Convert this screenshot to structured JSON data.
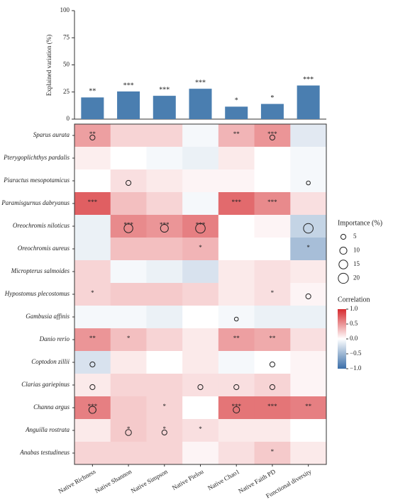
{
  "chart_data": [
    {
      "type": "bar",
      "ylabel": "Explained variation (%)",
      "color": "#4a7eb0",
      "values": [
        20,
        25.5,
        21.5,
        28,
        11.5,
        14,
        31
      ],
      "significance": [
        "**",
        "***",
        "***",
        "***",
        "*",
        "*",
        "***"
      ],
      "ylim": [
        0,
        100
      ],
      "yticks": [
        0,
        25,
        50,
        75,
        100
      ]
    },
    {
      "type": "heatmap",
      "columns": [
        "Native Richness",
        "Native Shannon",
        "Native Simpson",
        "Native Pielou",
        "Native Chao1",
        "Native Faith PD",
        "Functional diversity"
      ],
      "rows": [
        "Sparus aurata",
        "Pterygoplichthys pardalis",
        "Piaractus mesopotamicus",
        "Paramisgurnus dabryanus",
        "Oreochromis niloticus",
        "Oreochromis aureus",
        "Micropterus salmoides",
        "Hypostomus plecostomus",
        "Gambusia affinis",
        "Danio rerio",
        "Coptodon zillii",
        "Clarias gariepinus",
        "Channa argus",
        "Anguilla rostrata",
        "Anabas testudineus"
      ],
      "values": [
        [
          0.45,
          0.2,
          0.2,
          -0.05,
          0.35,
          0.5,
          -0.15
        ],
        [
          0.08,
          0,
          -0.05,
          -0.1,
          0.1,
          0,
          -0.05
        ],
        [
          0,
          0.15,
          0.1,
          0.05,
          0.05,
          0,
          -0.05
        ],
        [
          0.75,
          0.3,
          0.2,
          -0.05,
          0.7,
          0.55,
          0.15
        ],
        [
          -0.1,
          0.55,
          0.5,
          0.6,
          0,
          0.05,
          -0.3
        ],
        [
          -0.1,
          0.3,
          0.3,
          0.35,
          0,
          0,
          -0.45
        ],
        [
          0.2,
          -0.05,
          -0.1,
          -0.2,
          0.1,
          0.15,
          0.1
        ],
        [
          0.2,
          0.25,
          0.25,
          0.2,
          0.1,
          0.15,
          0.05
        ],
        [
          -0.05,
          -0.05,
          -0.1,
          0,
          -0.05,
          -0.1,
          -0.1
        ],
        [
          0.5,
          0.3,
          0.2,
          0.1,
          0.45,
          0.4,
          0.15
        ],
        [
          -0.2,
          0.1,
          0,
          0.1,
          -0.05,
          0,
          0.05
        ],
        [
          0.1,
          0.2,
          0.2,
          0.15,
          0.15,
          0.2,
          0.05
        ],
        [
          0.6,
          0.25,
          0.2,
          0,
          0.65,
          0.65,
          0.6
        ],
        [
          0.1,
          0.25,
          0.2,
          0.15,
          0.1,
          0.1,
          0
        ],
        [
          0.2,
          0.2,
          0.2,
          0.05,
          0.15,
          0.25,
          0.1
        ]
      ],
      "importance": [
        [
          5,
          null,
          null,
          null,
          null,
          5,
          null
        ],
        [
          null,
          null,
          null,
          null,
          null,
          null,
          null
        ],
        [
          null,
          5,
          null,
          null,
          null,
          null,
          3
        ],
        [
          null,
          null,
          null,
          null,
          null,
          null,
          null
        ],
        [
          null,
          15,
          12,
          18,
          null,
          null,
          18
        ],
        [
          null,
          null,
          null,
          null,
          null,
          null,
          null
        ],
        [
          null,
          null,
          null,
          null,
          null,
          null,
          null
        ],
        [
          null,
          null,
          null,
          null,
          null,
          null,
          5
        ],
        [
          null,
          null,
          null,
          null,
          3,
          null,
          null
        ],
        [
          null,
          null,
          null,
          null,
          null,
          null,
          null
        ],
        [
          5,
          null,
          null,
          null,
          null,
          5,
          null
        ],
        [
          5,
          null,
          null,
          5,
          5,
          5,
          null
        ],
        [
          10,
          null,
          null,
          null,
          8,
          null,
          null
        ],
        [
          null,
          7,
          5,
          null,
          null,
          null,
          null
        ],
        [
          null,
          null,
          null,
          null,
          null,
          null,
          null
        ]
      ],
      "significance": [
        [
          "**",
          null,
          null,
          null,
          "**",
          "***",
          null
        ],
        [
          null,
          null,
          null,
          null,
          null,
          null,
          null
        ],
        [
          null,
          null,
          null,
          null,
          null,
          null,
          null
        ],
        [
          "***",
          null,
          null,
          null,
          "***",
          "***",
          null
        ],
        [
          null,
          "***",
          "***",
          "***",
          null,
          null,
          null
        ],
        [
          null,
          null,
          null,
          "*",
          null,
          null,
          "*"
        ],
        [
          null,
          null,
          null,
          null,
          null,
          null,
          null
        ],
        [
          "*",
          null,
          null,
          null,
          null,
          "*",
          null
        ],
        [
          null,
          null,
          null,
          null,
          null,
          null,
          null
        ],
        [
          "**",
          "*",
          null,
          null,
          "**",
          "**",
          null
        ],
        [
          null,
          null,
          null,
          null,
          null,
          null,
          null
        ],
        [
          null,
          null,
          null,
          null,
          null,
          null,
          null
        ],
        [
          "***",
          null,
          "*",
          null,
          "***",
          "***",
          "**"
        ],
        [
          null,
          "*",
          "*",
          "*",
          null,
          null,
          null
        ],
        [
          null,
          null,
          null,
          null,
          null,
          "*",
          null
        ]
      ],
      "colors": [
        "#3b6ea8",
        "#ffffff",
        "#d62a2e"
      ],
      "clim": [
        -1,
        1
      ],
      "cticks": [
        {
          "value": 1,
          "label": "1.0"
        },
        {
          "value": 0.5,
          "label": "0.5"
        },
        {
          "value": 0,
          "label": "0.0"
        },
        {
          "value": -0.5,
          "label": "−0.5"
        },
        {
          "value": -1,
          "label": "−1.0"
        }
      ],
      "colorbar_title": "Correlation",
      "size_title": "Importance (%)",
      "size_legend": [
        5,
        10,
        15,
        20
      ]
    }
  ]
}
